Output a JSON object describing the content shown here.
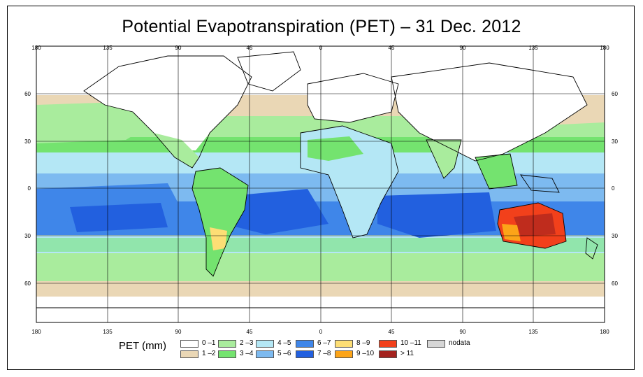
{
  "title": "Potential Evapotranspiration (PET) – 31 Dec. 2012",
  "longitude_ticks": [
    "180",
    "135",
    "90",
    "45",
    "0",
    "45",
    "90",
    "135",
    "180"
  ],
  "latitude_ticks_left": [
    "60",
    "30",
    "0",
    "30",
    "60"
  ],
  "latitude_ticks_right": [
    "60",
    "30",
    "0",
    "30",
    "60"
  ],
  "legend": {
    "label": "PET (mm)",
    "items": [
      {
        "label": "0 –1",
        "color": "#ffffff"
      },
      {
        "label": "1 –2",
        "color": "#ead7b5"
      },
      {
        "label": "2 –3",
        "color": "#a9ec9d"
      },
      {
        "label": "3 –4",
        "color": "#74e36f"
      },
      {
        "label": "4 –5",
        "color": "#b4e7f5"
      },
      {
        "label": "5 –6",
        "color": "#7dbaf0"
      },
      {
        "label": "6 –7",
        "color": "#3f86e9"
      },
      {
        "label": "7 –8",
        "color": "#2260df"
      },
      {
        "label": "8 –9",
        "color": "#fdde75"
      },
      {
        "label": "9 –10",
        "color": "#fca418"
      },
      {
        "label": "10 –11",
        "color": "#f2401b"
      },
      {
        "label": "> 11",
        "color": "#a3221e"
      },
      {
        "label": "nodata",
        "color": "#d6d6d6"
      }
    ]
  }
}
